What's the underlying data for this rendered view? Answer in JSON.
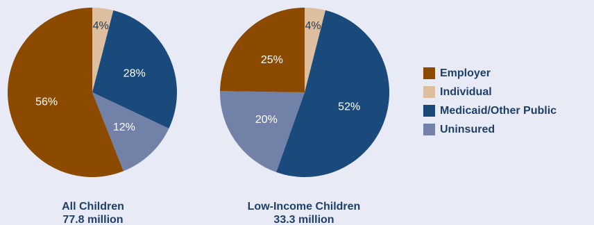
{
  "chart_data": [
    {
      "type": "pie",
      "caption_lines": [
        "All Children",
        "77.8 million"
      ],
      "slices": [
        {
          "name": "Individual",
          "value": 4,
          "label": "4%"
        },
        {
          "name": "Medicaid/Other Public",
          "value": 28,
          "label": "28%"
        },
        {
          "name": "Uninsured",
          "value": 12,
          "label": "12%"
        },
        {
          "name": "Employer",
          "value": 56,
          "label": "56%"
        }
      ]
    },
    {
      "type": "pie",
      "caption_lines": [
        "Low-Income Children",
        "33.3 million"
      ],
      "slices": [
        {
          "name": "Individual",
          "value": 4,
          "label": "4%"
        },
        {
          "name": "Medicaid/Other Public",
          "value": 52,
          "label": "52%"
        },
        {
          "name": "Uninsured",
          "value": 20,
          "label": "20%"
        },
        {
          "name": "Employer",
          "value": 25,
          "label": "25%"
        }
      ]
    }
  ],
  "legend": {
    "placement": "right",
    "items": [
      {
        "name": "Employer",
        "color": "#8b4a00"
      },
      {
        "name": "Individual",
        "color": "#ddbfa0"
      },
      {
        "name": "Medicaid/Other Public",
        "color": "#1a4a7c"
      },
      {
        "name": "Uninsured",
        "color": "#7281a8"
      }
    ]
  }
}
